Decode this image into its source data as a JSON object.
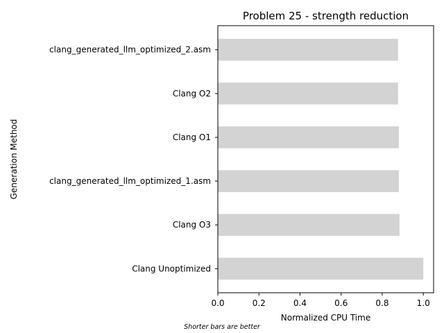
{
  "chart_data": {
    "type": "bar",
    "orientation": "horizontal",
    "title": "Problem 25 - strength reduction",
    "xlabel": "Normalized CPU Time",
    "ylabel": "Generation Method",
    "categories": [
      "Clang Unoptimized",
      "Clang O3",
      "clang_generated_llm_optimized_1.asm",
      "Clang O1",
      "Clang O2",
      "clang_generated_llm_optimized_2.asm"
    ],
    "values": [
      1.0,
      0.884,
      0.881,
      0.881,
      0.877,
      0.877
    ],
    "xlim": [
      0,
      1.05
    ],
    "xticks": [
      "0.0",
      "0.2",
      "0.4",
      "0.6",
      "0.8",
      "1.0"
    ],
    "bar_color": "#d3d3d3",
    "grid": false,
    "note": "Shorter bars are better"
  }
}
